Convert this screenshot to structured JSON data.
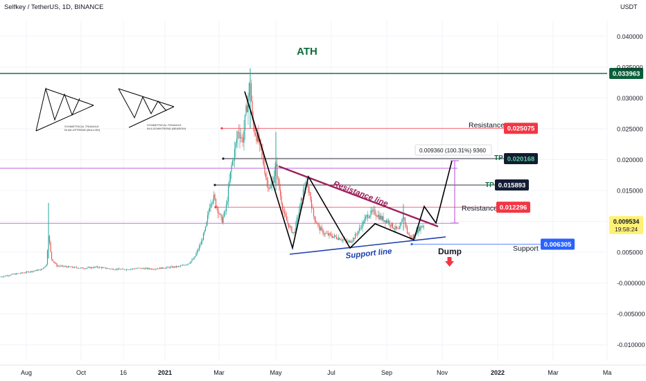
{
  "header": {
    "symbol": "Selfkey / TetherUS, 1D, BINANCE",
    "currency": "USDT"
  },
  "colors": {
    "candle_up": "#26a69a",
    "candle_down": "#ef5350",
    "ath_line": "#0b5e3a",
    "resistance_red": "#f23645",
    "resistance_line": "#9c1f5a",
    "support_line": "#1e3fb0",
    "level_purple": "#b04ad6",
    "support_badge": "#2962ff",
    "tp_badge": "#131c33",
    "last_price_badge": "#fff176"
  },
  "chart_data": {
    "type": "candlestick",
    "title": "Selfkey / TetherUS, 1D, BINANCE",
    "ylabel": "USDT",
    "ylim": [
      -0.0125,
      0.0425
    ],
    "y_ticks": [
      0.04,
      0.035,
      0.03,
      0.025,
      0.02,
      0.015,
      0.01,
      0.005,
      -0.0,
      -0.005,
      -0.01
    ],
    "y_tick_labels": [
      "0.040000",
      "0.035000",
      "0.030000",
      "0.025000",
      "0.020000",
      "0.015000",
      "",
      "0.005000",
      "-0.000000",
      "-0.005000",
      "-0.010000"
    ],
    "x_ticks": [
      "Aug",
      "Oct",
      "16",
      "2021",
      "Mar",
      "May",
      "Jul",
      "Sep",
      "Nov",
      "2022",
      "Mar",
      "Ma"
    ],
    "x_tick_positions": [
      38,
      117,
      178,
      238,
      316,
      398,
      478,
      558,
      638,
      718,
      798,
      876
    ],
    "price_path": [
      {
        "t": 0,
        "p": 0.001
      },
      {
        "t": 18,
        "p": 0.0014
      },
      {
        "t": 30,
        "p": 0.0016
      },
      {
        "t": 45,
        "p": 0.0019
      },
      {
        "t": 60,
        "p": 0.0022
      },
      {
        "t": 67,
        "p": 0.003
      },
      {
        "t": 70,
        "p": 0.008
      },
      {
        "t": 74,
        "p": 0.004
      },
      {
        "t": 82,
        "p": 0.0028
      },
      {
        "t": 100,
        "p": 0.0026
      },
      {
        "t": 120,
        "p": 0.0024
      },
      {
        "t": 140,
        "p": 0.0026
      },
      {
        "t": 160,
        "p": 0.0023
      },
      {
        "t": 180,
        "p": 0.0022
      },
      {
        "t": 200,
        "p": 0.0024
      },
      {
        "t": 220,
        "p": 0.0023
      },
      {
        "t": 240,
        "p": 0.0025
      },
      {
        "t": 260,
        "p": 0.0027
      },
      {
        "t": 272,
        "p": 0.0032
      },
      {
        "t": 280,
        "p": 0.004
      },
      {
        "t": 290,
        "p": 0.0065
      },
      {
        "t": 297,
        "p": 0.009
      },
      {
        "t": 303,
        "p": 0.013
      },
      {
        "t": 308,
        "p": 0.014
      },
      {
        "t": 314,
        "p": 0.012
      },
      {
        "t": 320,
        "p": 0.01
      },
      {
        "t": 326,
        "p": 0.012
      },
      {
        "t": 334,
        "p": 0.019
      },
      {
        "t": 338,
        "p": 0.021
      },
      {
        "t": 344,
        "p": 0.025
      },
      {
        "t": 350,
        "p": 0.023
      },
      {
        "t": 356,
        "p": 0.0285
      },
      {
        "t": 361,
        "p": 0.033
      },
      {
        "t": 364,
        "p": 0.026
      },
      {
        "t": 370,
        "p": 0.024
      },
      {
        "t": 378,
        "p": 0.021
      },
      {
        "t": 384,
        "p": 0.017
      },
      {
        "t": 390,
        "p": 0.015
      },
      {
        "t": 398,
        "p": 0.019
      },
      {
        "t": 404,
        "p": 0.0145
      },
      {
        "t": 410,
        "p": 0.011
      },
      {
        "t": 418,
        "p": 0.009
      },
      {
        "t": 424,
        "p": 0.008
      },
      {
        "t": 432,
        "p": 0.012
      },
      {
        "t": 440,
        "p": 0.016
      },
      {
        "t": 446,
        "p": 0.015
      },
      {
        "t": 452,
        "p": 0.011
      },
      {
        "t": 460,
        "p": 0.009
      },
      {
        "t": 468,
        "p": 0.008
      },
      {
        "t": 480,
        "p": 0.0076
      },
      {
        "t": 492,
        "p": 0.0072
      },
      {
        "t": 502,
        "p": 0.0066
      },
      {
        "t": 510,
        "p": 0.0072
      },
      {
        "t": 520,
        "p": 0.009
      },
      {
        "t": 530,
        "p": 0.011
      },
      {
        "t": 540,
        "p": 0.0115
      },
      {
        "t": 550,
        "p": 0.0105
      },
      {
        "t": 560,
        "p": 0.01
      },
      {
        "t": 568,
        "p": 0.009
      },
      {
        "t": 576,
        "p": 0.0085
      },
      {
        "t": 582,
        "p": 0.011
      },
      {
        "t": 588,
        "p": 0.008
      },
      {
        "t": 594,
        "p": 0.0072
      },
      {
        "t": 600,
        "p": 0.0082
      },
      {
        "t": 606,
        "p": 0.009
      },
      {
        "t": 612,
        "p": 0.0095
      }
    ],
    "levels": [
      {
        "name": "ath",
        "value": 0.033963,
        "label": "0.033963"
      },
      {
        "name": "resistance-top",
        "value": 0.025075,
        "label": "0.025075"
      },
      {
        "name": "tp2",
        "value": 0.020168,
        "label": "0.020168"
      },
      {
        "name": "tp1",
        "value": 0.015893,
        "label": "0.015893"
      },
      {
        "name": "resistance-mid",
        "value": 0.012296,
        "label": "0.012296"
      },
      {
        "name": "support",
        "value": 0.006305,
        "label": "0.006305"
      },
      {
        "name": "purple-upper",
        "value": 0.0186
      },
      {
        "name": "purple-lower",
        "value": 0.0097
      }
    ],
    "last_price": {
      "value": "0.009534",
      "countdown": "19:58:24"
    },
    "annotations": {
      "ath": "ATH",
      "resistance_line": "Resistance line",
      "support_line": "Support line",
      "resistance_a": "Resistance",
      "resistance_b": "Resistance",
      "support": "Support",
      "tp_a": "TP",
      "tp_b": "TP",
      "dump": "Dump",
      "measure": "0.009360 (100.31%) 9360",
      "triangle_up_caption_1": "SYMMETRICAL TRIANGLE",
      "triangle_up_caption_2": "IN AN UPTREND (BULLISH)",
      "triangle_down_caption_1": "SYMMETRICAL TRIANGLE",
      "triangle_down_caption_2": "IN A DOWNTREND (BEARISH)"
    }
  }
}
